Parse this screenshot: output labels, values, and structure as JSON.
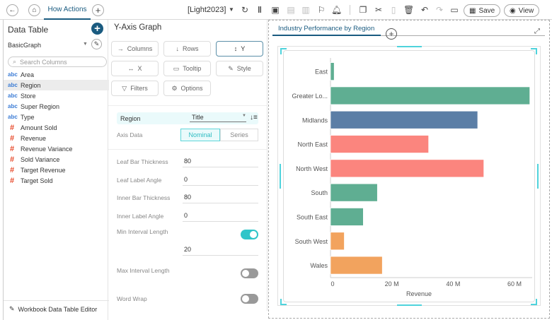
{
  "topbar": {
    "tab_label": "How Actions",
    "theme": "[Light2023]",
    "save_label": "Save",
    "view_label": "View"
  },
  "left": {
    "title": "Data Table",
    "source": "BasicGraph",
    "search_placeholder": "Search Columns",
    "columns": [
      {
        "type": "abc",
        "name": "Area"
      },
      {
        "type": "abc",
        "name": "Region"
      },
      {
        "type": "abc",
        "name": "Store"
      },
      {
        "type": "abc",
        "name": "Super Region"
      },
      {
        "type": "abc",
        "name": "Type"
      },
      {
        "type": "#",
        "name": "Amount Sold"
      },
      {
        "type": "#",
        "name": "Revenue"
      },
      {
        "type": "#",
        "name": "Revenue Variance"
      },
      {
        "type": "#",
        "name": "Sold Variance"
      },
      {
        "type": "#",
        "name": "Target Revenue"
      },
      {
        "type": "#",
        "name": "Target Sold"
      }
    ],
    "footer": "Workbook Data Table Editor"
  },
  "mid": {
    "title": "Y-Axis Graph",
    "buttons": {
      "columns": "Columns",
      "rows": "Rows",
      "y": "Y",
      "x": "X",
      "tooltip": "Tooltip",
      "style": "Style",
      "filters": "Filters",
      "options": "Options"
    },
    "region_label": "Region",
    "region_select": "Title",
    "axis_data_label": "Axis Data",
    "nominal": "Nominal",
    "series": "Series",
    "fields": [
      {
        "label": "Leaf Bar Thickness",
        "value": "80"
      },
      {
        "label": "Leaf Label Angle",
        "value": "0"
      },
      {
        "label": "Inner Bar Thickness",
        "value": "80"
      },
      {
        "label": "Inner Label Angle",
        "value": "0"
      }
    ],
    "min_interval": {
      "label": "Min Interval Length",
      "on": true,
      "value": "20"
    },
    "max_interval": {
      "label": "Max Interval Length",
      "on": false
    },
    "word_wrap": {
      "label": "Word Wrap",
      "on": false
    }
  },
  "chart_tab": "Industry Performance by Region",
  "chart_data": {
    "type": "bar",
    "orientation": "horizontal",
    "title": "Industry Performance by Region",
    "xlabel": "Revenue",
    "ylabel": "",
    "categories": [
      "East",
      "Greater Lo...",
      "Midlands",
      "North East",
      "North West",
      "South",
      "South East",
      "South West",
      "Wales"
    ],
    "values": [
      1.2,
      65,
      48,
      32,
      50,
      15.3,
      10.7,
      4.5,
      16.9
    ],
    "units": "M",
    "colors": [
      "#5fae92",
      "#5fae92",
      "#5b7ea6",
      "#fb857e",
      "#fb857e",
      "#5fae92",
      "#5fae92",
      "#f2a35e",
      "#f2a35e"
    ],
    "xticks": [
      {
        "v": 0,
        "label": "0"
      },
      {
        "v": 20,
        "label": "20 M"
      },
      {
        "v": 40,
        "label": "40 M"
      },
      {
        "v": 60,
        "label": "60 M"
      }
    ],
    "xlim": [
      0,
      65
    ]
  }
}
